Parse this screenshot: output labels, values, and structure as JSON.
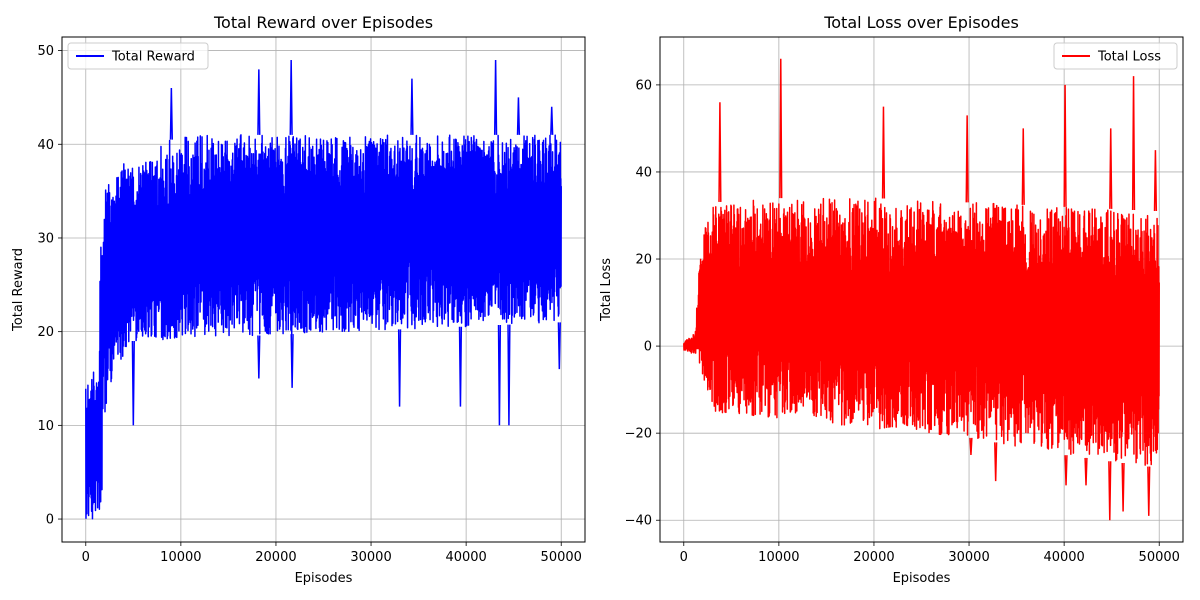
{
  "chart_data": [
    {
      "type": "line",
      "title": "Total Reward over Episodes",
      "xlabel": "Episodes",
      "ylabel": "Total Reward",
      "xlim": [
        -2500,
        52500
      ],
      "ylim": [
        -2.45,
        51.45
      ],
      "xticks": [
        0,
        10000,
        20000,
        30000,
        40000,
        50000
      ],
      "xtick_labels": [
        "0",
        "10000",
        "20000",
        "30000",
        "40000",
        "50000"
      ],
      "yticks": [
        0,
        10,
        20,
        30,
        40,
        50
      ],
      "ytick_labels": [
        "0",
        "10",
        "20",
        "30",
        "40",
        "50"
      ],
      "grid": true,
      "legend_position": "upper-left",
      "color": "#0000ff",
      "series": [
        {
          "name": "Total Reward",
          "x_range": [
            0,
            50000
          ],
          "lower_envelope": [
            [
              0,
              0
            ],
            [
              1700,
              0
            ],
            [
              1800,
              9
            ],
            [
              2500,
              14
            ],
            [
              3000,
              16
            ],
            [
              5000,
              19
            ],
            [
              50000,
              21
            ]
          ],
          "upper_envelope": [
            [
              0,
              14
            ],
            [
              1400,
              17
            ],
            [
              1500,
              29
            ],
            [
              2000,
              36
            ],
            [
              4000,
              38
            ],
            [
              10000,
              41
            ],
            [
              50000,
              41
            ]
          ],
          "spikes": [
            [
              9000,
              46
            ],
            [
              18200,
              48
            ],
            [
              21600,
              49
            ],
            [
              34300,
              47
            ],
            [
              43100,
              49
            ],
            [
              45500,
              45
            ],
            [
              49000,
              44
            ]
          ],
          "dips": [
            [
              5000,
              10
            ],
            [
              18200,
              15
            ],
            [
              21700,
              14
            ],
            [
              33000,
              12
            ],
            [
              39400,
              12
            ],
            [
              43500,
              10
            ],
            [
              44500,
              10
            ],
            [
              49800,
              16
            ]
          ]
        }
      ]
    },
    {
      "type": "line",
      "title": "Total Loss over Episodes",
      "xlabel": "Episodes",
      "ylabel": "Total Loss",
      "xlim": [
        -2500,
        52500
      ],
      "ylim": [
        -45,
        71
      ],
      "xticks": [
        0,
        10000,
        20000,
        30000,
        40000,
        50000
      ],
      "xtick_labels": [
        "0",
        "10000",
        "20000",
        "30000",
        "40000",
        "50000"
      ],
      "yticks": [
        -40,
        -20,
        0,
        20,
        40,
        60
      ],
      "ytick_labels": [
        "−40",
        "−20",
        "0",
        "20",
        "40",
        "60"
      ],
      "grid": true,
      "legend_position": "upper-right",
      "color": "#ff0000",
      "series": [
        {
          "name": "Total Loss",
          "x_range": [
            0,
            50000
          ],
          "lower_envelope": [
            [
              0,
              -1
            ],
            [
              1200,
              -2
            ],
            [
              1800,
              -6
            ],
            [
              3000,
              -15
            ],
            [
              10000,
              -17
            ],
            [
              20000,
              -19
            ],
            [
              30000,
              -21
            ],
            [
              40000,
              -25
            ],
            [
              50000,
              -28
            ]
          ],
          "upper_envelope": [
            [
              0,
              1
            ],
            [
              1200,
              3
            ],
            [
              1800,
              25
            ],
            [
              3000,
              33
            ],
            [
              10000,
              34
            ],
            [
              20000,
              34
            ],
            [
              30000,
              33
            ],
            [
              40000,
              32
            ],
            [
              50000,
              31
            ]
          ],
          "spikes": [
            [
              3800,
              56
            ],
            [
              10200,
              66
            ],
            [
              21000,
              55
            ],
            [
              29800,
              53
            ],
            [
              35700,
              50
            ],
            [
              40100,
              60
            ],
            [
              44900,
              50
            ],
            [
              47300,
              62
            ],
            [
              49600,
              45
            ]
          ],
          "dips": [
            [
              30200,
              -25
            ],
            [
              32800,
              -31
            ],
            [
              40200,
              -32
            ],
            [
              42300,
              -32
            ],
            [
              44800,
              -40
            ],
            [
              46200,
              -38
            ],
            [
              48900,
              -39
            ]
          ]
        }
      ]
    }
  ]
}
